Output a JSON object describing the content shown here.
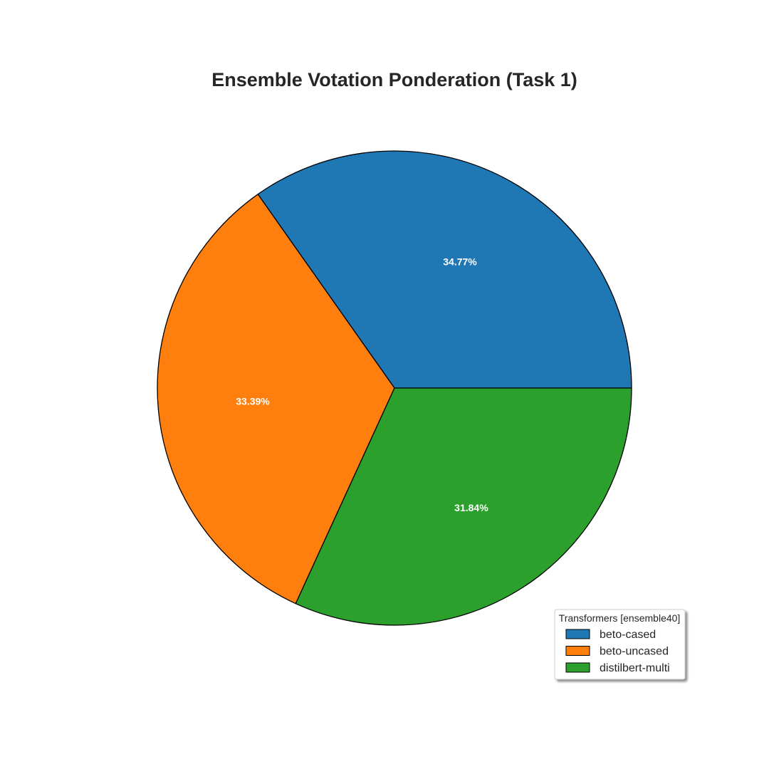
{
  "chart_data": {
    "type": "pie",
    "title": "Ensemble Votation Ponderation (Task 1)",
    "categories": [
      "beto-cased",
      "beto-uncased",
      "distilbert-multi"
    ],
    "values": [
      34.77,
      33.39,
      31.84
    ],
    "labels": [
      "34.77%",
      "33.39%",
      "31.84%"
    ],
    "colors": [
      "#1f77b4",
      "#ff7f0e",
      "#2ca02c"
    ],
    "start_angle_deg": 0,
    "direction": "counterclockwise",
    "legend": {
      "title": "Transformers [ensemble40]",
      "placement": "lower-right",
      "items": [
        "beto-cased",
        "beto-uncased",
        "distilbert-multi"
      ]
    }
  }
}
